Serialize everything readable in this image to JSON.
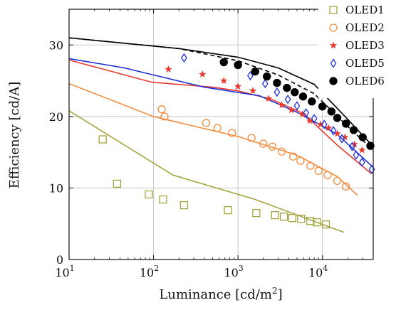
{
  "chart_data": {
    "type": "scatter",
    "xlabel": "Luminance [cd/m",
    "xlabel_sup": "2",
    "xlabel_end": "]",
    "ylabel": "Efficiency [cd/A]",
    "xscale": "log",
    "xlim": [
      10,
      40000
    ],
    "ylim": [
      0,
      35
    ],
    "grid": true,
    "legend_position": "right",
    "x_ticks": [
      {
        "value": 10,
        "base": "10",
        "exp": "1"
      },
      {
        "value": 100,
        "base": "10",
        "exp": "2"
      },
      {
        "value": 1000,
        "base": "10",
        "exp": "3"
      },
      {
        "value": 10000,
        "base": "10",
        "exp": "4"
      }
    ],
    "y_ticks": [
      {
        "value": 0,
        "label": "0"
      },
      {
        "value": 10,
        "label": "10"
      },
      {
        "value": 20,
        "label": "20"
      },
      {
        "value": 30,
        "label": "30"
      }
    ],
    "series": [
      {
        "name": "OLED1",
        "marker": "square",
        "color": "#a4a43d",
        "points": [
          [
            25,
            16.8
          ],
          [
            37,
            10.6
          ],
          [
            88,
            9.1
          ],
          [
            130,
            8.4
          ],
          [
            230,
            7.6
          ],
          [
            760,
            6.9
          ],
          [
            1650,
            6.5
          ],
          [
            2750,
            6.2
          ],
          [
            3500,
            6.0
          ],
          [
            4400,
            5.8
          ],
          [
            5600,
            5.7
          ],
          [
            7200,
            5.4
          ],
          [
            8600,
            5.2
          ],
          [
            11000,
            4.9
          ]
        ],
        "fit": [
          [
            10,
            20.8
          ],
          [
            170,
            11.8
          ],
          [
            1600,
            8.4
          ],
          [
            18000,
            3.8
          ]
        ]
      },
      {
        "name": "OLED2",
        "marker": "circle",
        "color": "#f28c3c",
        "points": [
          [
            125,
            21.0
          ],
          [
            135,
            20.0
          ],
          [
            420,
            19.1
          ],
          [
            570,
            18.4
          ],
          [
            850,
            17.7
          ],
          [
            1450,
            17.0
          ],
          [
            2000,
            16.2
          ],
          [
            2550,
            15.8
          ],
          [
            3300,
            15.1
          ],
          [
            4500,
            14.4
          ],
          [
            5500,
            13.8
          ],
          [
            7200,
            13.1
          ],
          [
            9000,
            12.4
          ],
          [
            11500,
            11.8
          ],
          [
            15000,
            11.0
          ],
          [
            19000,
            10.2
          ]
        ],
        "fit": [
          [
            10,
            24.6
          ],
          [
            100,
            20.0
          ],
          [
            1000,
            17.2
          ],
          [
            5000,
            14.6
          ],
          [
            15000,
            11.6
          ],
          [
            26000,
            9.0
          ]
        ]
      },
      {
        "name": "OLED3",
        "marker": "star",
        "color": "#e63b2e",
        "points": [
          [
            150,
            26.6
          ],
          [
            380,
            25.9
          ],
          [
            680,
            25.0
          ],
          [
            1000,
            24.2
          ],
          [
            1500,
            23.6
          ],
          [
            2300,
            22.5
          ],
          [
            3300,
            21.6
          ],
          [
            4300,
            20.9
          ],
          [
            5800,
            20.3
          ],
          [
            7100,
            19.4
          ],
          [
            9500,
            18.9
          ],
          [
            11800,
            18.4
          ],
          [
            15000,
            17.6
          ],
          [
            18500,
            17.1
          ],
          [
            24000,
            16.1
          ],
          [
            29500,
            15.3
          ]
        ],
        "fit": [
          [
            10,
            27.9
          ],
          [
            95,
            24.8
          ],
          [
            500,
            24.1
          ],
          [
            1000,
            23.6
          ],
          [
            2500,
            22.4
          ],
          [
            6000,
            20.4
          ],
          [
            15000,
            16.0
          ],
          [
            38000,
            12.0
          ]
        ]
      },
      {
        "name": "OLED5",
        "marker": "diamond",
        "color": "#1f2fd6",
        "points": [
          [
            230,
            28.2
          ],
          [
            1400,
            25.7
          ],
          [
            2100,
            24.6
          ],
          [
            2900,
            23.4
          ],
          [
            3900,
            22.4
          ],
          [
            5000,
            21.5
          ],
          [
            6400,
            20.5
          ],
          [
            8000,
            19.7
          ],
          [
            10500,
            18.9
          ],
          [
            13500,
            18.0
          ],
          [
            17000,
            16.9
          ],
          [
            22500,
            15.8
          ],
          [
            25000,
            14.6
          ],
          [
            29500,
            13.6
          ],
          [
            38500,
            12.6
          ]
        ],
        "fit": [
          [
            10,
            28.1
          ],
          [
            45,
            26.8
          ],
          [
            400,
            24.1
          ],
          [
            1800,
            22.9
          ],
          [
            5000,
            20.6
          ],
          [
            15000,
            17.5
          ],
          [
            40000,
            12.9
          ]
        ]
      },
      {
        "name": "OLED6",
        "marker": "circle-filled",
        "color": "#000000",
        "points": [
          [
            680,
            27.6
          ],
          [
            1000,
            27.2
          ],
          [
            1600,
            26.3
          ],
          [
            2200,
            25.6
          ],
          [
            2900,
            24.7
          ],
          [
            3800,
            24.0
          ],
          [
            4700,
            23.4
          ],
          [
            5900,
            22.8
          ],
          [
            7500,
            22.1
          ],
          [
            10000,
            21.4
          ],
          [
            12800,
            20.7
          ],
          [
            15000,
            19.8
          ],
          [
            19000,
            19.0
          ],
          [
            23500,
            18.1
          ],
          [
            30000,
            17.1
          ],
          [
            37000,
            15.9
          ]
        ],
        "fit": [
          [
            10,
            31.0
          ],
          [
            200,
            29.5
          ],
          [
            1000,
            28.3
          ],
          [
            3000,
            26.8
          ],
          [
            8000,
            24.5
          ],
          [
            20000,
            19.6
          ],
          [
            40000,
            15.8
          ]
        ],
        "fit_dashed": [
          [
            10,
            31.0
          ],
          [
            200,
            29.5
          ],
          [
            1000,
            27.8
          ],
          [
            3000,
            25.8
          ],
          [
            8000,
            23.2
          ],
          [
            20000,
            18.6
          ],
          [
            40000,
            15.3
          ]
        ]
      }
    ]
  }
}
